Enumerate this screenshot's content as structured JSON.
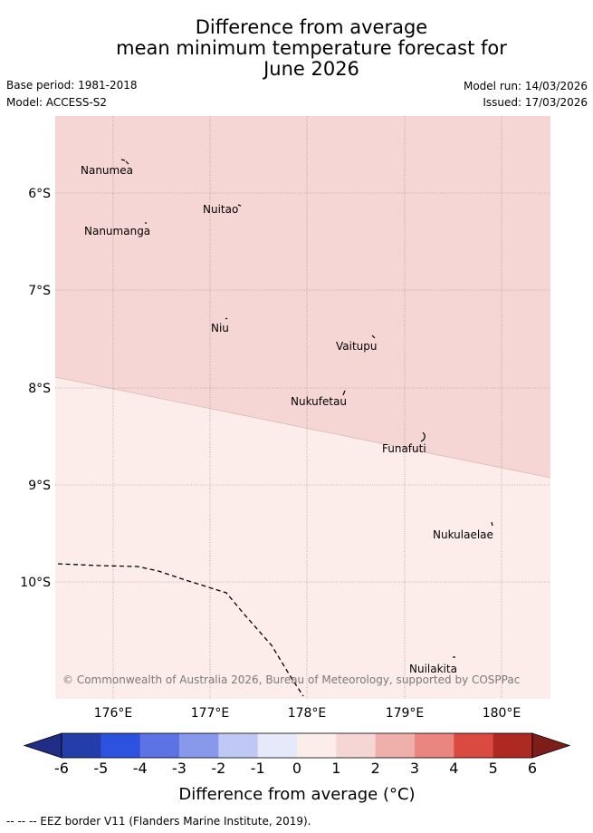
{
  "title": {
    "line1": "Difference from average",
    "line2": "mean minimum temperature forecast for",
    "line3": "June 2026"
  },
  "info": {
    "base_period": "Base period: 1981-2018",
    "model": "Model: ACCESS-S2",
    "model_run": "Model run: 14/03/2026",
    "issued": "Issued: 17/03/2026"
  },
  "map": {
    "lat_labels": [
      "6°S",
      "7°S",
      "8°S",
      "9°S",
      "10°S"
    ],
    "lon_labels": [
      "176°E",
      "177°E",
      "178°E",
      "179°E",
      "180°E"
    ],
    "places": [
      "Nanumea",
      "Nuitao",
      "Nanumanga",
      "Niu",
      "Vaitupu",
      "Nukufetau",
      "Funafuti",
      "Nukulaelae",
      "Nuilakita"
    ],
    "copyright": "© Commonwealth of Australia 2026, Bureau of Meteorology, supported by COSPPac",
    "zone_colors": {
      "upper": "#f5d6d5",
      "lower": "#fcecea"
    }
  },
  "colorbar": {
    "ticks": [
      "-6",
      "-5",
      "-4",
      "-3",
      "-2",
      "-1",
      "0",
      "1",
      "2",
      "3",
      "4",
      "5",
      "6"
    ],
    "colors": [
      "#243ea9",
      "#2e52e0",
      "#5b73e5",
      "#8899ec",
      "#c0c8f5",
      "#e6e9fa",
      "#fcecea",
      "#f5d6d5",
      "#efafaa",
      "#e98680",
      "#db4a40",
      "#ad2922"
    ],
    "low_extend_color": "#1f2d86",
    "high_extend_color": "#7d1e1a",
    "label": "Difference from average (°C)"
  },
  "footer": "-- -- -- EEZ border V11 (Flanders Marine Institute, 2019)."
}
